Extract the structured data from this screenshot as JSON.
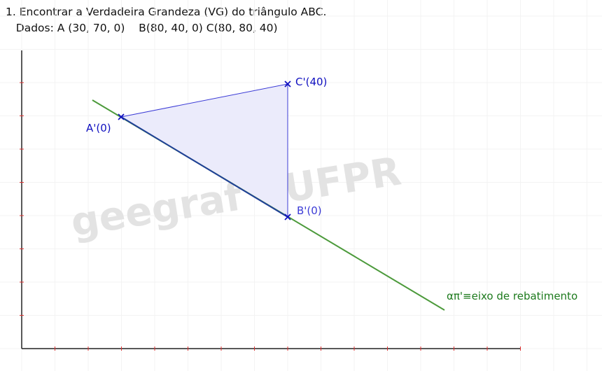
{
  "header": {
    "line1": "1. Encontrar a Verdadeira Grandeza (VG) do triângulo ABC.",
    "line2": "   Dados: A (30, 70, 0)    B(80, 40, 0) C(80, 80, 40)"
  },
  "watermark": {
    "text": "geegraf - UFPR"
  },
  "points": [
    {
      "id": "A",
      "label": "A'(0)"
    },
    {
      "id": "B",
      "label": "B'(0)"
    },
    {
      "id": "C",
      "label": "C'(40)"
    }
  ],
  "axis_label": "απ'≡eixo de rebatimento",
  "colors": {
    "triangle_fill": "#ebebfb",
    "triangle_edge": "#3b3bd6",
    "blue_line": "#1f3f99",
    "green_line": "#4c9a3b",
    "green_text": "#1d7a1d",
    "point_marker": "#1010c0",
    "axis": "#222222",
    "tick": "#e03030",
    "grid": "#f3f3f3",
    "watermark": "#e3e3e3"
  }
}
